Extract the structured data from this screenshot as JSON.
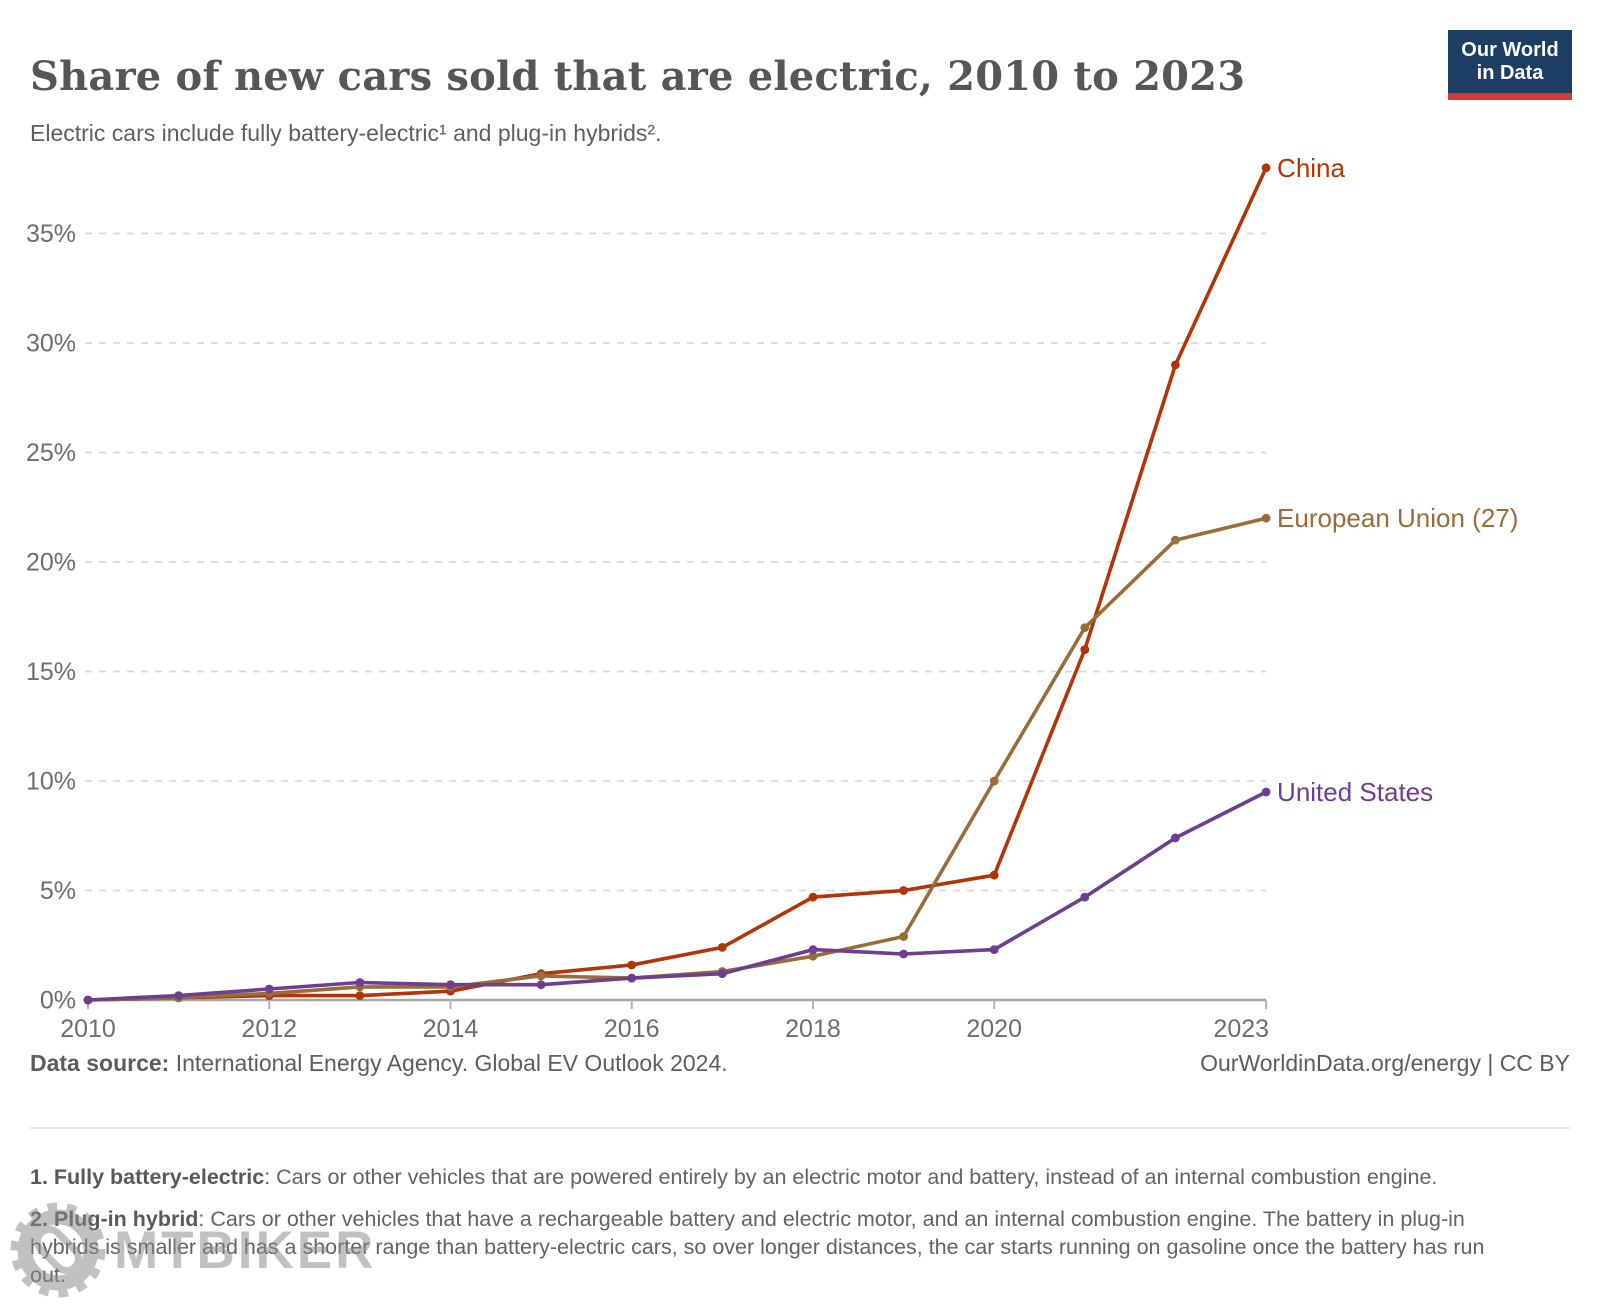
{
  "header": {
    "title": "Share of new cars sold that are electric, 2010 to 2023",
    "subtitle": "Electric cars include fully battery-electric¹ and plug-in hybrids².",
    "logo": {
      "line1": "Our World",
      "line2": "in Data",
      "bg_color": "#1d3d63",
      "accent_color": "#d13b32"
    }
  },
  "chart_data": {
    "type": "line",
    "title": "Share of new cars sold that are electric, 2010 to 2023",
    "x": [
      2010,
      2011,
      2012,
      2013,
      2014,
      2015,
      2016,
      2017,
      2018,
      2019,
      2020,
      2021,
      2022,
      2023
    ],
    "series": [
      {
        "name": "China",
        "color": "#b13507",
        "values": [
          0.0,
          0.1,
          0.2,
          0.2,
          0.4,
          1.2,
          1.6,
          2.4,
          4.7,
          5.0,
          5.7,
          16.0,
          29.0,
          38.0
        ]
      },
      {
        "name": "European Union (27)",
        "color": "#996d39",
        "values": [
          0.0,
          0.1,
          0.3,
          0.6,
          0.6,
          1.1,
          1.0,
          1.3,
          2.0,
          2.9,
          10.0,
          17.0,
          21.0,
          22.0
        ]
      },
      {
        "name": "United States",
        "color": "#6d3e91",
        "values": [
          0.0,
          0.2,
          0.5,
          0.8,
          0.7,
          0.7,
          1.0,
          1.2,
          2.3,
          2.1,
          2.3,
          4.7,
          7.4,
          9.5
        ]
      }
    ],
    "xlabel": "",
    "ylabel": "",
    "ylim": [
      0,
      38.5
    ],
    "ytick_values": [
      0,
      5,
      10,
      15,
      20,
      25,
      30,
      35
    ],
    "ytick_labels": [
      "0%",
      "5%",
      "10%",
      "15%",
      "20%",
      "25%",
      "30%",
      "35%"
    ],
    "xtick_values": [
      2010,
      2012,
      2014,
      2016,
      2018,
      2020,
      2023
    ],
    "xtick_labels": [
      "2010",
      "2012",
      "2014",
      "2016",
      "2018",
      "2020",
      "2023"
    ],
    "grid": "horizontal dashed gridlines on",
    "legend_position": "labels at line ends (right side)",
    "axis_text_color": "#6e6e6e",
    "gridline_color": "#d9d9d9",
    "axis_line_color": "#a6a6a6"
  },
  "footer": {
    "source_label": "Data source:",
    "source_text": " International Energy Agency. Global EV Outlook 2024.",
    "rights_text": "OurWorldinData.org/energy | CC BY"
  },
  "footnotes": {
    "fn1_label": "1. Fully battery-electric",
    "fn1_text": ": Cars or other vehicles that are powered entirely by an electric motor and battery, instead of an internal combustion engine.",
    "fn2_label": "2. Plug-in hybrid",
    "fn2_text": ": Cars or other vehicles that have a rechargeable battery and electric motor, and an internal combustion engine. The battery in plug-in hybrids is smaller and has a shorter range than battery-electric cars, so over longer distances, the car starts running on gasoline once the battery has run out."
  },
  "watermark": {
    "text": "MTBIKER"
  }
}
